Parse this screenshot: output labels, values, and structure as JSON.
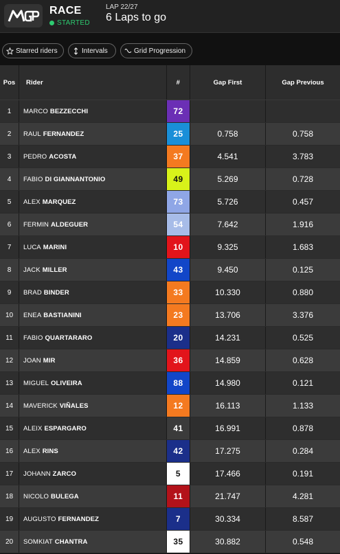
{
  "header": {
    "logo_text": "MotoGP",
    "race_label": "RACE",
    "status": "STARTED",
    "status_color": "#2ecc71",
    "lap_label": "LAP 22/27",
    "laps_to_go": "6 Laps to go"
  },
  "toolbar": {
    "starred": "Starred riders",
    "intervals": "Intervals",
    "grid": "Grid Progression"
  },
  "table": {
    "headers": {
      "pos": "Pos",
      "rider": "Rider",
      "num": "#",
      "gap_first": "Gap First",
      "gap_previous": "Gap Previous"
    },
    "rows": [
      {
        "pos": "1",
        "first": "MARCO",
        "last": "BEZZECCHI",
        "num": "72",
        "color": "#6b2fb5",
        "text": "#fff",
        "gap_first": "",
        "gap_previous": ""
      },
      {
        "pos": "2",
        "first": "RAUL",
        "last": "FERNANDEZ",
        "num": "25",
        "color": "#1a8fd8",
        "text": "#fff",
        "gap_first": "0.758",
        "gap_previous": "0.758"
      },
      {
        "pos": "3",
        "first": "PEDRO",
        "last": "ACOSTA",
        "num": "37",
        "color": "#f47a20",
        "text": "#fff",
        "gap_first": "4.541",
        "gap_previous": "3.783"
      },
      {
        "pos": "4",
        "first": "FABIO",
        "last": "DI GIANNANTONIO",
        "num": "49",
        "color": "#d8f21a",
        "text": "#111",
        "gap_first": "5.269",
        "gap_previous": "0.728"
      },
      {
        "pos": "5",
        "first": "ALEX",
        "last": "MARQUEZ",
        "num": "73",
        "color": "#8fa6e6",
        "text": "#fff",
        "gap_first": "5.726",
        "gap_previous": "0.457"
      },
      {
        "pos": "6",
        "first": "FERMIN",
        "last": "ALDEGUER",
        "num": "54",
        "color": "#a7bce8",
        "text": "#fff",
        "gap_first": "7.642",
        "gap_previous": "1.916"
      },
      {
        "pos": "7",
        "first": "LUCA",
        "last": "MARINI",
        "num": "10",
        "color": "#e2141b",
        "text": "#fff",
        "gap_first": "9.325",
        "gap_previous": "1.683"
      },
      {
        "pos": "8",
        "first": "JACK",
        "last": "MILLER",
        "num": "43",
        "color": "#1246c8",
        "text": "#fff",
        "gap_first": "9.450",
        "gap_previous": "0.125"
      },
      {
        "pos": "9",
        "first": "BRAD",
        "last": "BINDER",
        "num": "33",
        "color": "#f47a20",
        "text": "#fff",
        "gap_first": "10.330",
        "gap_previous": "0.880"
      },
      {
        "pos": "10",
        "first": "ENEA",
        "last": "BASTIANINI",
        "num": "23",
        "color": "#f47a20",
        "text": "#fff",
        "gap_first": "13.706",
        "gap_previous": "3.376"
      },
      {
        "pos": "11",
        "first": "FABIO",
        "last": "QUARTARARO",
        "num": "20",
        "color": "#1b2f8a",
        "text": "#fff",
        "gap_first": "14.231",
        "gap_previous": "0.525"
      },
      {
        "pos": "12",
        "first": "JOAN",
        "last": "MIR",
        "num": "36",
        "color": "#e2141b",
        "text": "#fff",
        "gap_first": "14.859",
        "gap_previous": "0.628"
      },
      {
        "pos": "13",
        "first": "MIGUEL",
        "last": "OLIVEIRA",
        "num": "88",
        "color": "#1246c8",
        "text": "#fff",
        "gap_first": "14.980",
        "gap_previous": "0.121"
      },
      {
        "pos": "14",
        "first": "MAVERICK",
        "last": "VIÑALES",
        "num": "12",
        "color": "#f47a20",
        "text": "#fff",
        "gap_first": "16.113",
        "gap_previous": "1.133"
      },
      {
        "pos": "15",
        "first": "ALEIX",
        "last": "ESPARGARO",
        "num": "41",
        "color": "#3b3b3b",
        "text": "#fff",
        "gap_first": "16.991",
        "gap_previous": "0.878"
      },
      {
        "pos": "16",
        "first": "ALEX",
        "last": "RINS",
        "num": "42",
        "color": "#1b2f8a",
        "text": "#fff",
        "gap_first": "17.275",
        "gap_previous": "0.284"
      },
      {
        "pos": "17",
        "first": "JOHANN",
        "last": "ZARCO",
        "num": "5",
        "color": "#ffffff",
        "text": "#111",
        "gap_first": "17.466",
        "gap_previous": "0.191"
      },
      {
        "pos": "18",
        "first": "NICOLO",
        "last": "BULEGA",
        "num": "11",
        "color": "#b3121a",
        "text": "#fff",
        "gap_first": "21.747",
        "gap_previous": "4.281"
      },
      {
        "pos": "19",
        "first": "AUGUSTO",
        "last": "FERNANDEZ",
        "num": "7",
        "color": "#1b2f8a",
        "text": "#fff",
        "gap_first": "30.334",
        "gap_previous": "8.587"
      },
      {
        "pos": "20",
        "first": "SOMKIAT",
        "last": "CHANTRA",
        "num": "35",
        "color": "#ffffff",
        "text": "#111",
        "gap_first": "30.882",
        "gap_previous": "0.548"
      }
    ]
  }
}
